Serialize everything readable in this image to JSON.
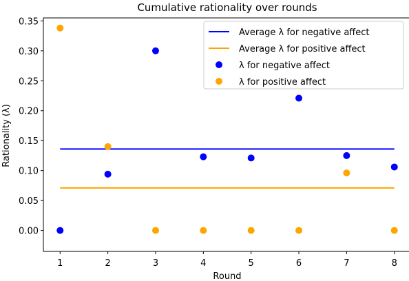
{
  "chart_data": {
    "type": "scatter",
    "title": "Cumulative rationality over rounds",
    "xlabel": "Round",
    "ylabel": "Rationality (λ)",
    "x": [
      1,
      2,
      3,
      4,
      5,
      6,
      7,
      8
    ],
    "xlim": [
      0.65,
      8.35
    ],
    "ylim": [
      -0.035,
      0.355
    ],
    "xticks": [
      "1",
      "2",
      "3",
      "4",
      "5",
      "6",
      "7",
      "8"
    ],
    "yticks": [
      "0.00",
      "0.05",
      "0.10",
      "0.15",
      "0.20",
      "0.25",
      "0.30",
      "0.35"
    ],
    "grid": false,
    "legend_position": "top-right",
    "series": [
      {
        "name": "Average λ for negative affect",
        "kind": "line",
        "color": "#0000ff",
        "x": [
          1,
          8
        ],
        "values": [
          0.136,
          0.136
        ]
      },
      {
        "name": "Average λ for positive affect",
        "kind": "line",
        "color": "#ffa500",
        "x": [
          1,
          8
        ],
        "values": [
          0.071,
          0.071
        ]
      },
      {
        "name": "λ for negative affect",
        "kind": "scatter",
        "color": "#0000ff",
        "x": [
          1,
          2,
          3,
          4,
          5,
          6,
          7,
          8
        ],
        "values": [
          0.0,
          0.094,
          0.3,
          0.123,
          0.121,
          0.221,
          0.125,
          0.106
        ]
      },
      {
        "name": "λ for positive affect",
        "kind": "scatter",
        "color": "#ffa500",
        "x": [
          1,
          2,
          3,
          4,
          5,
          6,
          7,
          8
        ],
        "values": [
          0.338,
          0.14,
          0.0,
          0.0,
          0.0,
          0.0,
          0.096,
          0.0
        ]
      }
    ]
  }
}
